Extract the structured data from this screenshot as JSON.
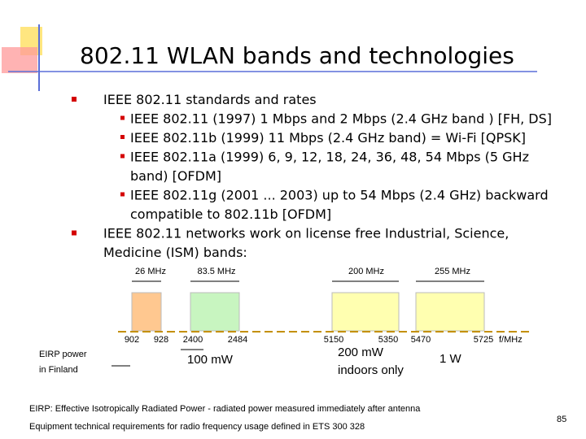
{
  "header": {
    "title": "802.11 WLAN bands and technologies"
  },
  "bullets": [
    {
      "lines": [
        "IEEE 802.11 standards and rates"
      ],
      "sub": [
        {
          "lines": [
            "IEEE 802.11 (1997) 1 Mbps and 2 Mbps (2.4 GHz band ) [FH, DS]"
          ]
        },
        {
          "lines": [
            "IEEE 802.11b (1999) 11 Mbps (2.4 GHz band) = Wi-Fi [QPSK]"
          ]
        },
        {
          "lines": [
            "IEEE 802.11a (1999) 6, 9, 12, 18, 24, 36, 48, 54 Mbps (5 GHz",
            "band) [OFDM]"
          ]
        },
        {
          "lines": [
            "IEEE 802.11g (2001 ... 2003) up to 54 Mbps (2.4 GHz) backward",
            "compatible to 802.11b [OFDM]"
          ]
        }
      ]
    },
    {
      "lines": [
        "IEEE 802.11 networks work on license free Industrial, Science,",
        "Medicine (ISM) bands:"
      ]
    }
  ],
  "diagram": {
    "bandwidths": [
      "26 MHz",
      "83.5 MHz",
      "200 MHz",
      "255 MHz"
    ],
    "frequencies": [
      "902",
      "928",
      "2400",
      "2484",
      "5150",
      "5350",
      "5470",
      "5725"
    ],
    "axis_unit": "f/MHz",
    "eirp_label": [
      "EIRP power",
      "in Finland"
    ],
    "powers": [
      [
        "100 mW"
      ],
      [
        "200 mW",
        "indoors only"
      ],
      [
        "1 W"
      ]
    ]
  },
  "footnotes": [
    "EIRP: Effective Isotropically Radiated Power - radiated power measured immediately after antenna",
    "Equipment technical requirements for radio frequency usage defined in ETS 300 328"
  ],
  "page_number": "85"
}
